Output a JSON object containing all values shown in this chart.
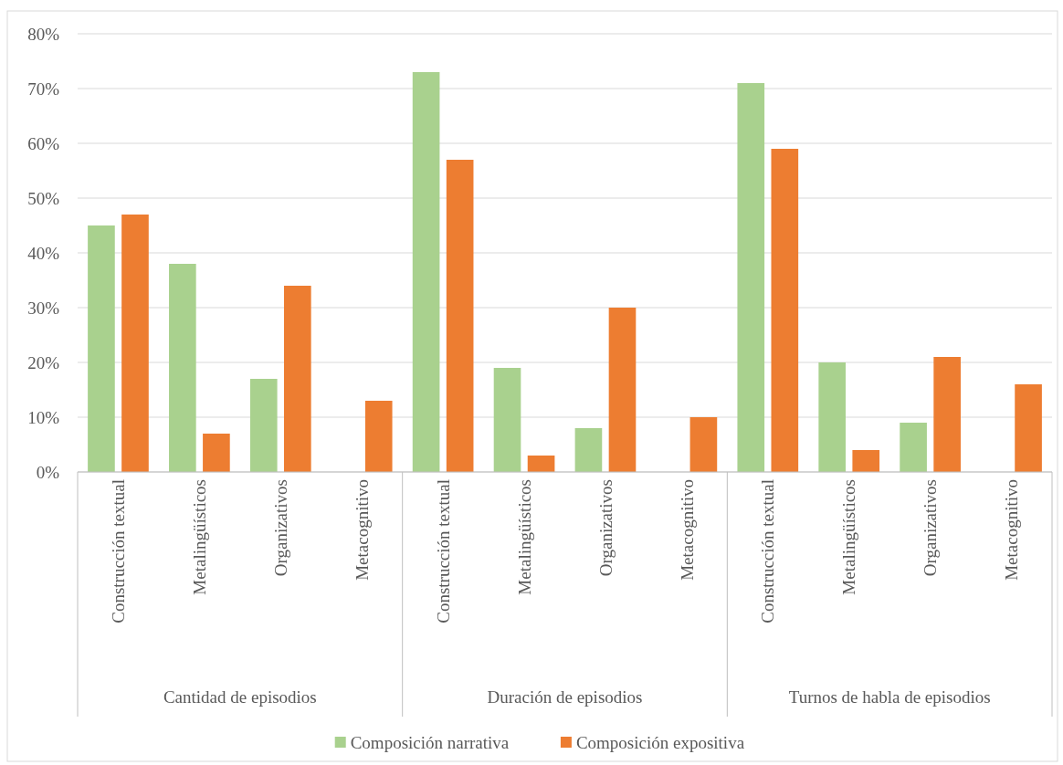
{
  "chart_data": {
    "type": "bar",
    "categories": [
      "Construcción textual",
      "Metalingüísticos",
      "Organizativos",
      "Metacognitivo",
      "Construcción textual",
      "Metalingüísticos",
      "Organizativos",
      "Metacognitivo",
      "Construcción textual",
      "Metalingüísticos",
      "Organizativos",
      "Metacognitivo"
    ],
    "series": [
      {
        "name": "Composición narrativa",
        "color": "#a9d18e",
        "values": [
          45,
          38,
          17,
          0,
          73,
          19,
          8,
          0,
          71,
          20,
          9,
          0
        ]
      },
      {
        "name": "Composición expositiva",
        "color": "#ed7d31",
        "values": [
          47,
          7,
          34,
          13,
          57,
          3,
          30,
          10,
          59,
          4,
          21,
          16
        ]
      }
    ],
    "annotations": [
      "Cantidad de episodios",
      "Duración de episodios",
      "Turnos de habla de episodios"
    ],
    "ylim": [
      0,
      80
    ],
    "yticks": [
      {
        "value": 0,
        "label": "0%"
      },
      {
        "value": 10,
        "label": "10%"
      },
      {
        "value": 20,
        "label": "20%"
      },
      {
        "value": 30,
        "label": "30%"
      },
      {
        "value": 40,
        "label": "40%"
      },
      {
        "value": 50,
        "label": "50%"
      },
      {
        "value": 60,
        "label": "60%"
      },
      {
        "value": 70,
        "label": "70%"
      },
      {
        "value": 80,
        "label": "80%"
      }
    ],
    "grid": "y",
    "legend": "bottom"
  }
}
